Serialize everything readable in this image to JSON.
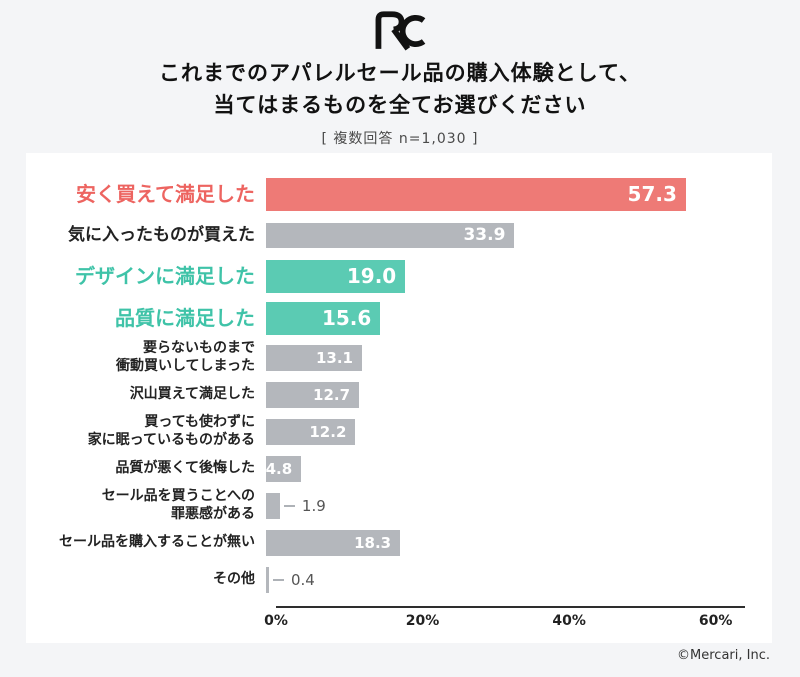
{
  "logo_monogram": "RC",
  "header": {
    "title_line1": "これまでのアパレルセール品の購入体験として、",
    "title_line2": "当てはまるものを全てお選びください",
    "subtitle": "[ 複数回答 n=1,030 ]"
  },
  "chart_data": {
    "type": "bar",
    "orientation": "horizontal",
    "title": "これまでのアパレルセール品の購入体験として、当てはまるものを全てお選びください",
    "subtitle_note": "複数回答 n=1,030",
    "unit": "%",
    "xlim": [
      0,
      64
    ],
    "xtick_values": [
      0,
      20,
      40,
      60
    ],
    "xtick_labels": [
      "0%",
      "20%",
      "40%",
      "60%"
    ],
    "grid": false,
    "legend": false,
    "rows": [
      {
        "label_lines": [
          "安く買えて満足した"
        ],
        "value": 57.3,
        "value_label": "57.3",
        "bar_color": "red",
        "label_color": "red",
        "size": "lg",
        "value_position": "inside"
      },
      {
        "label_lines": [
          "気に入ったものが買えた"
        ],
        "value": 33.9,
        "value_label": "33.9",
        "bar_color": "gray",
        "label_color": "dark",
        "size": "md",
        "value_position": "inside"
      },
      {
        "label_lines": [
          "デザインに満足した"
        ],
        "value": 19.0,
        "value_label": "19.0",
        "bar_color": "teal",
        "label_color": "teal",
        "size": "lg",
        "value_position": "inside"
      },
      {
        "label_lines": [
          "品質に満足した"
        ],
        "value": 15.6,
        "value_label": "15.6",
        "bar_color": "teal",
        "label_color": "teal",
        "size": "lg",
        "value_position": "inside"
      },
      {
        "label_lines": [
          "要らないものまで",
          "衝動買いしてしまった"
        ],
        "value": 13.1,
        "value_label": "13.1",
        "bar_color": "gray",
        "label_color": "dark",
        "size": "sm",
        "value_position": "inside"
      },
      {
        "label_lines": [
          "沢山買えて満足した"
        ],
        "value": 12.7,
        "value_label": "12.7",
        "bar_color": "gray",
        "label_color": "dark",
        "size": "sm",
        "value_position": "inside"
      },
      {
        "label_lines": [
          "買っても使わずに",
          "家に眠っているものがある"
        ],
        "value": 12.2,
        "value_label": "12.2",
        "bar_color": "gray",
        "label_color": "dark",
        "size": "sm",
        "value_position": "inside"
      },
      {
        "label_lines": [
          "品質が悪くて後悔した"
        ],
        "value": 4.8,
        "value_label": "4.8",
        "bar_color": "gray",
        "label_color": "dark",
        "size": "sm",
        "value_position": "inside"
      },
      {
        "label_lines": [
          "セール品を買うことへの",
          "罪悪感がある"
        ],
        "value": 1.9,
        "value_label": "1.9",
        "bar_color": "gray",
        "label_color": "dark",
        "size": "sm",
        "value_position": "outside"
      },
      {
        "label_lines": [
          "セール品を購入することが無い"
        ],
        "value": 18.3,
        "value_label": "18.3",
        "bar_color": "gray",
        "label_color": "dark",
        "size": "sm",
        "value_position": "inside"
      },
      {
        "label_lines": [
          "その他"
        ],
        "value": 0.4,
        "value_label": "0.4",
        "bar_color": "gray",
        "label_color": "dark",
        "size": "sm",
        "value_position": "outside",
        "thin": true
      }
    ]
  },
  "footer": {
    "copyright": "©Mercari, Inc."
  },
  "colors": {
    "background": "#F4F5F7",
    "card": "#FFFFFF",
    "accent_red_bar": "#EE7A76",
    "accent_red_label": "#ED6460",
    "accent_teal_bar": "#5BCBB3",
    "accent_teal_label": "#3FC3A8",
    "bar_gray": "#B4B7BC",
    "text_dark": "#222222",
    "logo": "#121212"
  }
}
